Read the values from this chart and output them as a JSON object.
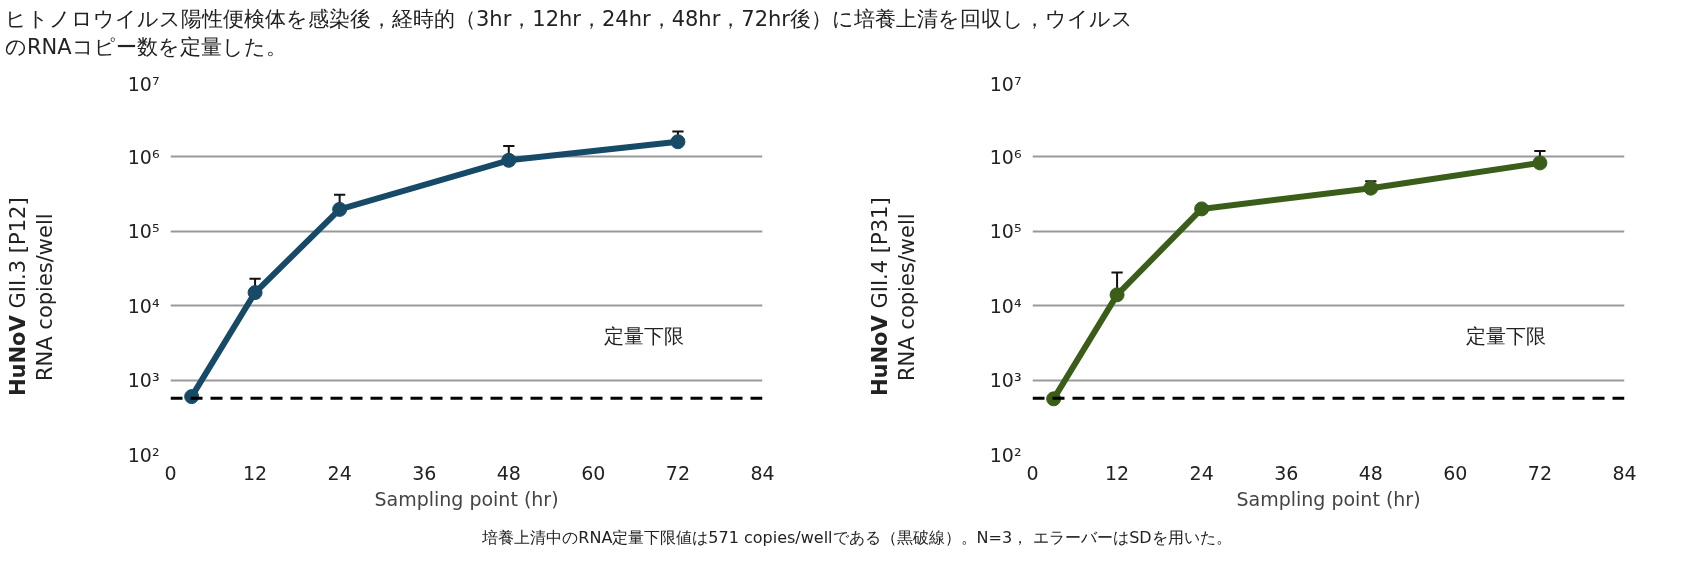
{
  "chart_data": [
    {
      "type": "line",
      "title": "ヒトノロウイルス陽性便検体を感染後，経時的（3hr，12hr，24hr，48hr，72hr後）に培養上清を回収し，ウイルスのRNAコピー数を定量した。",
      "xlabel": "Sampling point (hr)",
      "ylabel": "HuNoV GII.3 [P12]\nRNA copies/well",
      "x": [
        3,
        12,
        24,
        48,
        72
      ],
      "series": [
        {
          "color": "#174a66",
          "values": [
            600,
            15000,
            197000,
            900000,
            1600000
          ],
          "errors": [
            null,
            [
              15000,
              23000
            ],
            [
              197000,
              310000
            ],
            [
              900000,
              1400000
            ],
            [
              1600000,
              2200000
            ]
          ]
        }
      ],
      "log": "y",
      "xlim": [
        0,
        84
      ],
      "xticks": [
        0,
        12,
        24,
        36,
        48,
        60,
        72,
        84
      ],
      "ylim": [
        100,
        10000000
      ],
      "yticks": [
        {
          "value": 100,
          "label": "10²"
        },
        {
          "value": 1000,
          "label": "10³"
        },
        {
          "value": 10000,
          "label": "10⁴"
        },
        {
          "value": 100000,
          "label": "10⁵"
        },
        {
          "value": 1000000,
          "label": "10⁶"
        },
        {
          "value": 10000000,
          "label": "10⁷"
        }
      ],
      "ref_lines": [
        {
          "axis": "y",
          "value": 571,
          "label": "定量下限",
          "color": "#000000",
          "line_style": "dashed"
        }
      ],
      "grid": "y",
      "marker": "circle",
      "annotations": [
        "培養上清中のRNA定量下限値は571 copies/wellである（黒破線）。N=3，  エラーバーはSDを用いた。"
      ]
    },
    {
      "type": "line",
      "xlabel": "Sampling point (hr)",
      "ylabel": "HuNoV GII.4 [P31]\nRNA copies/well",
      "x": [
        3,
        12,
        24,
        48,
        72
      ],
      "series": [
        {
          "color": "#3a5e19",
          "values": [
            560,
            14000,
            200000,
            380000,
            830000
          ],
          "errors": [
            null,
            [
              14000,
              28000
            ],
            null,
            [
              380000,
              470000
            ],
            [
              830000,
              1200000
            ]
          ]
        }
      ],
      "log": "y",
      "xlim": [
        0,
        84
      ],
      "xticks": [
        0,
        12,
        24,
        36,
        48,
        60,
        72,
        84
      ],
      "ylim": [
        100,
        10000000
      ],
      "yticks": [
        {
          "value": 100,
          "label": "10²"
        },
        {
          "value": 1000,
          "label": "10³"
        },
        {
          "value": 10000,
          "label": "10⁴"
        },
        {
          "value": 100000,
          "label": "10⁵"
        },
        {
          "value": 1000000,
          "label": "10⁶"
        },
        {
          "value": 10000000,
          "label": "10⁷"
        }
      ],
      "ref_lines": [
        {
          "axis": "y",
          "value": 571,
          "label": "定量下限",
          "color": "#000000",
          "line_style": "dashed"
        }
      ],
      "grid": "y",
      "marker": "circle"
    }
  ]
}
